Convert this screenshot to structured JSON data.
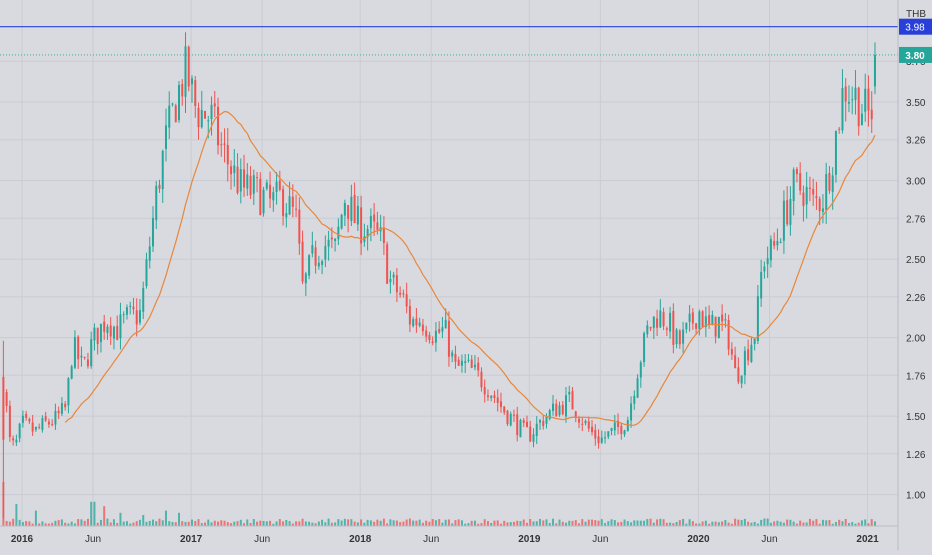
{
  "chart_data": {
    "type": "candlestick",
    "currency": "THB",
    "grid": true,
    "y_ticks": [
      1.0,
      1.26,
      1.5,
      1.76,
      2.0,
      2.26,
      2.5,
      2.76,
      3.0,
      3.26,
      3.5,
      3.76
    ],
    "y_tick_labels": [
      "1.00",
      "1.26",
      "1.50",
      "1.76",
      "2.00",
      "2.26",
      "2.50",
      "2.76",
      "3.00",
      "3.26",
      "3.50",
      "3.76"
    ],
    "ylim": [
      0.8,
      4.15
    ],
    "x_ticks": [
      "2016",
      "Jun",
      "2017",
      "Jun",
      "2018",
      "Jun",
      "2019",
      "Jun",
      "2020",
      "Jun",
      "2021"
    ],
    "x_tick_times": [
      2016.0,
      2016.42,
      2017.0,
      2017.42,
      2018.0,
      2018.42,
      2019.0,
      2019.42,
      2020.0,
      2020.42,
      2021.0
    ],
    "xlim": [
      2015.87,
      2021.18
    ],
    "resistance_line": {
      "value": 3.98,
      "label": "3.98",
      "color": "#2840d8"
    },
    "last_price": {
      "value": 3.8,
      "label": "3.80",
      "color": "#26a69a"
    },
    "moving_average_color": "#e8873a",
    "up_color": "#26a69a",
    "down_color": "#ef5350",
    "anchors": [
      [
        2015.89,
        1.73
      ],
      [
        2015.93,
        1.32
      ],
      [
        2015.96,
        1.3
      ],
      [
        2016.0,
        1.45
      ],
      [
        2016.08,
        1.4
      ],
      [
        2016.14,
        1.45
      ],
      [
        2016.2,
        1.48
      ],
      [
        2016.26,
        1.55
      ],
      [
        2016.3,
        1.95
      ],
      [
        2016.36,
        1.8
      ],
      [
        2016.42,
        1.98
      ],
      [
        2016.5,
        2.12
      ],
      [
        2016.56,
        2.05
      ],
      [
        2016.62,
        2.12
      ],
      [
        2016.7,
        2.15
      ],
      [
        2016.75,
        2.55
      ],
      [
        2016.8,
        2.95
      ],
      [
        2016.85,
        3.25
      ],
      [
        2016.92,
        3.55
      ],
      [
        2016.97,
        3.7
      ],
      [
        2017.03,
        3.45
      ],
      [
        2017.12,
        3.4
      ],
      [
        2017.18,
        3.2
      ],
      [
        2017.25,
        3.05
      ],
      [
        2017.3,
        2.95
      ],
      [
        2017.4,
        2.92
      ],
      [
        2017.47,
        2.85
      ],
      [
        2017.54,
        2.9
      ],
      [
        2017.62,
        2.75
      ],
      [
        2017.66,
        2.3
      ],
      [
        2017.72,
        2.5
      ],
      [
        2017.78,
        2.6
      ],
      [
        2017.85,
        2.55
      ],
      [
        2017.91,
        2.9
      ],
      [
        2017.98,
        2.72
      ],
      [
        2018.05,
        2.7
      ],
      [
        2018.12,
        2.62
      ],
      [
        2018.18,
        2.35
      ],
      [
        2018.25,
        2.25
      ],
      [
        2018.3,
        2.1
      ],
      [
        2018.36,
        2.12
      ],
      [
        2018.44,
        2.02
      ],
      [
        2018.5,
        2.05
      ],
      [
        2018.56,
        1.8
      ],
      [
        2018.62,
        1.82
      ],
      [
        2018.7,
        1.75
      ],
      [
        2018.76,
        1.68
      ],
      [
        2018.84,
        1.55
      ],
      [
        2018.9,
        1.48
      ],
      [
        2018.96,
        1.4
      ],
      [
        2019.0,
        1.38
      ],
      [
        2019.08,
        1.48
      ],
      [
        2019.16,
        1.55
      ],
      [
        2019.24,
        1.6
      ],
      [
        2019.3,
        1.5
      ],
      [
        2019.36,
        1.4
      ],
      [
        2019.42,
        1.35
      ],
      [
        2019.5,
        1.4
      ],
      [
        2019.58,
        1.48
      ],
      [
        2019.64,
        1.8
      ],
      [
        2019.7,
        2.05
      ],
      [
        2019.76,
        2.15
      ],
      [
        2019.82,
        2.1
      ],
      [
        2019.88,
        1.95
      ],
      [
        2019.94,
        2.05
      ],
      [
        2020.0,
        2.18
      ],
      [
        2020.06,
        2.05
      ],
      [
        2020.12,
        2.1
      ],
      [
        2020.18,
        2.0
      ],
      [
        2020.22,
        1.75
      ],
      [
        2020.28,
        1.9
      ],
      [
        2020.34,
        2.05
      ],
      [
        2020.38,
        2.5
      ],
      [
        2020.44,
        2.55
      ],
      [
        2020.5,
        2.75
      ],
      [
        2020.56,
        2.95
      ],
      [
        2020.62,
        2.95
      ],
      [
        2020.68,
        2.85
      ],
      [
        2020.74,
        2.9
      ],
      [
        2020.8,
        3.2
      ],
      [
        2020.86,
        3.6
      ],
      [
        2020.92,
        3.55
      ],
      [
        2020.98,
        3.45
      ],
      [
        2021.02,
        3.4
      ],
      [
        2021.06,
        3.8
      ]
    ],
    "volume_spikes": [
      [
        2015.89,
        1.0
      ],
      [
        2015.96,
        0.5
      ],
      [
        2016.08,
        0.35
      ],
      [
        2016.42,
        0.55
      ],
      [
        2016.48,
        0.45
      ],
      [
        2016.58,
        0.3
      ],
      [
        2016.72,
        0.25
      ],
      [
        2016.85,
        0.35
      ],
      [
        2016.93,
        0.3
      ],
      [
        2017.2,
        0.12
      ],
      [
        2018.0,
        0.15
      ],
      [
        2019.68,
        0.12
      ]
    ],
    "ma_length": 20,
    "candles_per_year": 52
  }
}
